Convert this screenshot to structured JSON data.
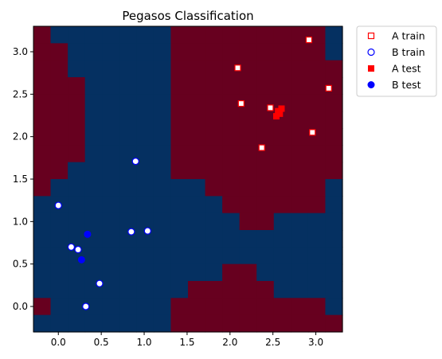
{
  "chart_data": {
    "type": "scatter",
    "title": "Pegasos Classification",
    "xlim": [
      -0.29,
      3.31
    ],
    "ylim": [
      -0.3,
      3.3
    ],
    "x_ticks": [
      0.0,
      0.5,
      1.0,
      1.5,
      2.0,
      2.5,
      3.0
    ],
    "x_tick_labels": [
      "0.0",
      "0.5",
      "1.0",
      "1.5",
      "2.0",
      "2.5",
      "3.0"
    ],
    "y_ticks": [
      0.0,
      0.5,
      1.0,
      1.5,
      2.0,
      2.5,
      3.0
    ],
    "y_tick_labels": [
      "0.0",
      "0.5",
      "1.0",
      "1.5",
      "2.0",
      "2.5",
      "3.0"
    ],
    "legend_position": "outside-top-right",
    "background_grid": {
      "x_edges": [
        -0.29,
        -0.09,
        0.11,
        0.31,
        0.51,
        0.71,
        0.91,
        1.11,
        1.31,
        1.51,
        1.71,
        1.91,
        2.11,
        2.31,
        2.51,
        2.71,
        2.91,
        3.11,
        3.31
      ],
      "y_edges": [
        -0.3,
        -0.1,
        0.1,
        0.3,
        0.5,
        0.7,
        0.9,
        1.1,
        1.3,
        1.5,
        1.7,
        1.9,
        2.1,
        2.3,
        2.5,
        2.7,
        2.9,
        3.1,
        3.3
      ],
      "class_a_color": "#67001f",
      "class_b_color": "#053061",
      "rows_top_to_bottom": [
        "ABBBBBBBAAAAAAAAAB",
        "AABBBBBBAAAAAAAAAB",
        "AABBBBBBAAAAAAAAAA",
        "AAABBBBBAAAAAAAAAA",
        "AAABBBBBAAAAAAAAAA",
        "AAABBBBBAAAAAAAAAA",
        "AAABBBBBAAAAAAAAAA",
        "AAABBBBBAAAAAAAAAA",
        "AABBBBBBAAAAAAAAAA",
        "ABBBBBBBBBAAAAAAAB",
        "BBBBBBBBBBBAAAAAAB",
        "BBBBBBBBBBBBAABBBB",
        "BBBBBBBBBBBBBBBBBB",
        "BBBBBBBBBBBBBBBBBB",
        "BBBBBBBBBBBAABBBBB",
        "BBBBBBBBBAAAAABBBB",
        "ABBBBBBBAAAAAAAAAB",
        "BBBBBBBBAAAAAAAAAA"
      ]
    },
    "series": [
      {
        "name": "A train",
        "marker": "square-open",
        "color": "#ff0000",
        "x": [
          2.09,
          2.13,
          2.47,
          2.37,
          2.92,
          3.15,
          2.96
        ],
        "y": [
          2.81,
          2.39,
          2.34,
          1.87,
          3.14,
          2.57,
          2.05
        ]
      },
      {
        "name": "B train",
        "marker": "circle-open",
        "color": "#0000ff",
        "x": [
          0.9,
          0.0,
          0.85,
          1.04,
          0.15,
          0.23,
          0.48,
          0.32
        ],
        "y": [
          1.71,
          1.19,
          0.88,
          0.89,
          0.7,
          0.67,
          0.27,
          0.0
        ]
      },
      {
        "name": "A test",
        "marker": "square-filled",
        "color": "#ff0000",
        "x": [
          2.56,
          2.6,
          2.54,
          2.58
        ],
        "y": [
          2.3,
          2.33,
          2.24,
          2.27
        ]
      },
      {
        "name": "B test",
        "marker": "circle-filled",
        "color": "#0000ff",
        "x": [
          0.34,
          0.27
        ],
        "y": [
          0.85,
          0.55
        ]
      }
    ]
  }
}
